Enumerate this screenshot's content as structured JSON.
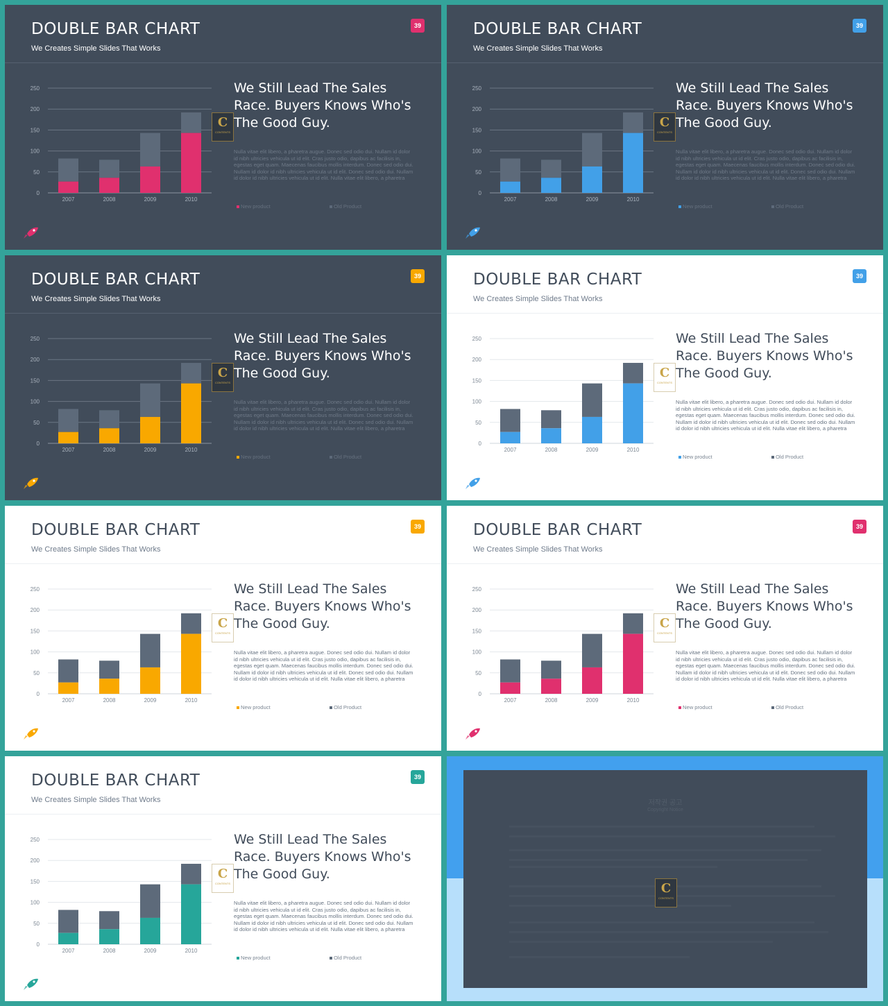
{
  "slides": [
    {
      "theme": "dark",
      "accent": "#e0306e",
      "title": "DOUBLE BAR CHART",
      "subtitle": "We Creates Simple Slides That Works",
      "badge": "39",
      "headline": "We Still Lead The Sales Race. Buyers Knows Who's The Good Guy.",
      "body": "Nulla vitae elit libero, a pharetra augue. Donec sed odio dui. Nullam id dolor id nibh ultricies vehicula ut id elit. Cras justo odio, dapibus ac facilisis in, egestas eget quam. Maecenas faucibus mollis interdum. Donec sed odio dui. Nullam id dolor id nibh ultricies vehicula ut id elit. Donec sed odio dui. Nullam id dolor id nibh ultricies vehicula ut id elit. Nulla vitae elit libero, a pharetra",
      "legend_new": "New product",
      "legend_old": "Old Product",
      "logo_letter": "C",
      "logo_text": "CONTENTS"
    },
    {
      "theme": "dark",
      "accent": "#42a0e8",
      "title": "DOUBLE BAR CHART",
      "subtitle": "We Creates Simple Slides That Works",
      "badge": "39",
      "headline": "We Still Lead The Sales Race. Buyers Knows Who's The Good Guy.",
      "body": "Nulla vitae elit libero, a pharetra augue. Donec sed odio dui. Nullam id dolor id nibh ultricies vehicula ut id elit. Cras justo odio, dapibus ac facilisis in, egestas eget quam. Maecenas faucibus mollis interdum. Donec sed odio dui. Nullam id dolor id nibh ultricies vehicula ut id elit. Donec sed odio dui. Nullam id dolor id nibh ultricies vehicula ut id elit. Nulla vitae elit libero, a pharetra",
      "legend_new": "New product",
      "legend_old": "Old Product",
      "logo_letter": "C",
      "logo_text": "CONTENTS"
    },
    {
      "theme": "dark",
      "accent": "#f9a800",
      "title": "DOUBLE BAR CHART",
      "subtitle": "We Creates Simple Slides That Works",
      "badge": "39",
      "headline": "We Still Lead The Sales Race. Buyers Knows Who's The Good Guy.",
      "body": "Nulla vitae elit libero, a pharetra augue. Donec sed odio dui. Nullam id dolor id nibh ultricies vehicula ut id elit. Cras justo odio, dapibus ac facilisis in, egestas eget quam. Maecenas faucibus mollis interdum. Donec sed odio dui. Nullam id dolor id nibh ultricies vehicula ut id elit. Donec sed odio dui. Nullam id dolor id nibh ultricies vehicula ut id elit. Nulla vitae elit libero, a pharetra",
      "legend_new": "New product",
      "legend_old": "Old Product",
      "logo_letter": "C",
      "logo_text": "CONTENTS"
    },
    {
      "theme": "light",
      "accent": "#42a0e8",
      "title": "DOUBLE BAR CHART",
      "subtitle": "We Creates Simple Slides That Works",
      "badge": "39",
      "headline": "We Still Lead The Sales Race. Buyers Knows Who's The Good Guy.",
      "body": "Nulla vitae elit libero, a pharetra augue. Donec sed odio dui. Nullam id dolor id nibh ultricies vehicula ut id elit. Cras justo odio, dapibus ac facilisis in, egestas eget quam. Maecenas faucibus mollis interdum. Donec sed odio dui. Nullam id dolor id nibh ultricies vehicula ut id elit. Donec sed odio dui. Nullam id dolor id nibh ultricies vehicula ut id elit. Nulla vitae elit libero, a pharetra",
      "legend_new": "New product",
      "legend_old": "Old Product",
      "logo_letter": "C",
      "logo_text": "CONTENTS"
    },
    {
      "theme": "light",
      "accent": "#f9a800",
      "title": "DOUBLE BAR CHART",
      "subtitle": "We Creates Simple Slides That Works",
      "badge": "39",
      "headline": "We Still Lead The Sales Race. Buyers Knows Who's The Good Guy.",
      "body": "Nulla vitae elit libero, a pharetra augue. Donec sed odio dui. Nullam id dolor id nibh ultricies vehicula ut id elit. Cras justo odio, dapibus ac facilisis in, egestas eget quam. Maecenas faucibus mollis interdum. Donec sed odio dui. Nullam id dolor id nibh ultricies vehicula ut id elit. Donec sed odio dui. Nullam id dolor id nibh ultricies vehicula ut id elit. Nulla vitae elit libero, a pharetra",
      "legend_new": "New product",
      "legend_old": "Old Product",
      "logo_letter": "C",
      "logo_text": "CONTENTS"
    },
    {
      "theme": "light",
      "accent": "#e0306e",
      "title": "DOUBLE BAR CHART",
      "subtitle": "We Creates Simple Slides That Works",
      "badge": "39",
      "headline": "We Still Lead The Sales Race. Buyers Knows Who's The Good Guy.",
      "body": "Nulla vitae elit libero, a pharetra augue. Donec sed odio dui. Nullam id dolor id nibh ultricies vehicula ut id elit. Cras justo odio, dapibus ac facilisis in, egestas eget quam. Maecenas faucibus mollis interdum. Donec sed odio dui. Nullam id dolor id nibh ultricies vehicula ut id elit. Donec sed odio dui. Nullam id dolor id nibh ultricies vehicula ut id elit. Nulla vitae elit libero, a pharetra",
      "legend_new": "New product",
      "legend_old": "Old Product",
      "logo_letter": "C",
      "logo_text": "CONTENTS"
    },
    {
      "theme": "light",
      "accent": "#26a69a",
      "title": "DOUBLE BAR CHART",
      "subtitle": "We Creates Simple Slides That Works",
      "badge": "39",
      "headline": "We Still Lead The Sales Race. Buyers Knows Who's The Good Guy.",
      "body": "Nulla vitae elit libero, a pharetra augue. Donec sed odio dui. Nullam id dolor id nibh ultricies vehicula ut id elit. Cras justo odio, dapibus ac facilisis in, egestas eget quam. Maecenas faucibus mollis interdum. Donec sed odio dui. Nullam id dolor id nibh ultricies vehicula ut id elit. Donec sed odio dui. Nullam id dolor id nibh ultricies vehicula ut id elit. Nulla vitae elit libero, a pharetra",
      "legend_new": "New product",
      "legend_old": "Old Product",
      "logo_letter": "C",
      "logo_text": "CONTENTS"
    }
  ],
  "copyright": {
    "title": "저작권 공고",
    "subtitle": "Copyright Notice",
    "logo_letter": "C",
    "logo_text": "CONTENTS"
  },
  "colors": {
    "old_product": "#5d6a7a",
    "frame": "#34a39a",
    "dark_bg": "#414c5a",
    "light_bg": "#ffffff",
    "copyright_top": "#42a0ee",
    "copyright_bottom": "#b7dffb"
  },
  "chart_data": {
    "type": "bar",
    "stacked": true,
    "categories": [
      "2007",
      "2008",
      "2009",
      "2010"
    ],
    "series": [
      {
        "name": "New product",
        "values": [
          27,
          36,
          63,
          143
        ]
      },
      {
        "name": "Old Product",
        "values": [
          55,
          43,
          80,
          49
        ]
      }
    ],
    "yticks": [
      0,
      50,
      100,
      150,
      200,
      250
    ],
    "ylim": [
      0,
      250
    ],
    "legend": "bottom"
  }
}
